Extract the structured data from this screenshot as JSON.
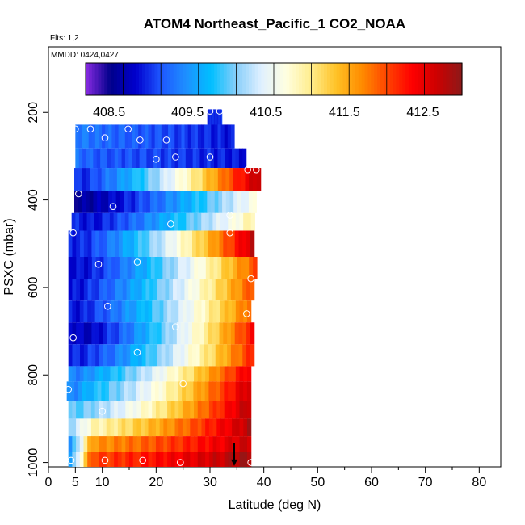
{
  "title": "ATOM4 Northeast_Pacific_1 CO2_NOAA",
  "flights_label": "Flts: 1,2",
  "dates_label": "MMDD: 0424,0427",
  "chart_data": {
    "type": "heatmap",
    "xlabel": "Latitude (deg N)",
    "ylabel": "PSXC (mbar)",
    "xlim": [
      0,
      84
    ],
    "ylim": [
      1010,
      50
    ],
    "y_reversed": true,
    "x_ticks": [
      0,
      5,
      10,
      20,
      30,
      40,
      50,
      60,
      70,
      80
    ],
    "y_ticks": [
      200,
      400,
      600,
      800,
      1000
    ],
    "colorbar": {
      "range": [
        408.2,
        413.0
      ],
      "tick_values": [
        408.5,
        409.5,
        410.5,
        411.5,
        412.5
      ],
      "tick_labels": [
        "408.5",
        "409.5",
        "410.5",
        "411.5",
        "412.5"
      ],
      "colors": [
        "#8a2be2",
        "#00008b",
        "#0000cd",
        "#1e56ff",
        "#1e90ff",
        "#00bfff",
        "#87cefa",
        "#e0f0ff",
        "#ffffe0",
        "#ffec8b",
        "#ffc125",
        "#ff8c00",
        "#ff4500",
        "#ff0000",
        "#cd0000",
        "#8b1a1a"
      ]
    },
    "bands": [
      {
        "p_top": 193,
        "p_bot": 228,
        "x0": 29.5,
        "x1": 32.2,
        "v0": 409.0,
        "v1": 409.0,
        "start": 409.0
      },
      {
        "p_top": 228,
        "p_bot": 282,
        "x0": 5.0,
        "x1": 34.5,
        "v0": 409.3,
        "v1": 408.9,
        "start": 409.4
      },
      {
        "p_top": 282,
        "p_bot": 327,
        "x0": 5.0,
        "x1": 36.7,
        "v0": 409.2,
        "v1": 408.9,
        "start": 409.3
      },
      {
        "p_top": 327,
        "p_bot": 380,
        "x0": 4.8,
        "x1": 39.4,
        "v0": 409.0,
        "v1": 412.8,
        "start": 409.0
      },
      {
        "p_top": 380,
        "p_bot": 430,
        "x0": 4.8,
        "x1": 38.6,
        "v0": 408.6,
        "v1": 410.7,
        "start": 408.6
      },
      {
        "p_top": 430,
        "p_bot": 470,
        "x0": 4.3,
        "x1": 38.3,
        "v0": 408.8,
        "v1": 411.0,
        "start": 409.0
      },
      {
        "p_top": 470,
        "p_bot": 530,
        "x0": 3.7,
        "x1": 38.2,
        "v0": 408.9,
        "v1": 412.7,
        "start": 409.0
      },
      {
        "p_top": 530,
        "p_bot": 580,
        "x0": 3.7,
        "x1": 38.7,
        "v0": 408.8,
        "v1": 412.0,
        "start": 408.9
      },
      {
        "p_top": 580,
        "p_bot": 630,
        "x0": 3.7,
        "x1": 38.2,
        "v0": 408.9,
        "v1": 412.0,
        "start": 408.9
      },
      {
        "p_top": 630,
        "p_bot": 680,
        "x0": 3.7,
        "x1": 37.6,
        "v0": 408.9,
        "v1": 411.9,
        "start": 408.9
      },
      {
        "p_top": 680,
        "p_bot": 730,
        "x0": 3.7,
        "x1": 38.2,
        "v0": 408.6,
        "v1": 412.3,
        "start": 408.9
      },
      {
        "p_top": 730,
        "p_bot": 780,
        "x0": 3.7,
        "x1": 38.2,
        "v0": 408.9,
        "v1": 412.2,
        "start": 409.0
      },
      {
        "p_top": 780,
        "p_bot": 815,
        "x0": 3.7,
        "x1": 37.6,
        "v0": 409.4,
        "v1": 412.5,
        "start": 409.4
      },
      {
        "p_top": 815,
        "p_bot": 860,
        "x0": 3.4,
        "x1": 37.6,
        "v0": 409.6,
        "v1": 412.7,
        "start": 409.4
      },
      {
        "p_top": 860,
        "p_bot": 900,
        "x0": 3.7,
        "x1": 37.6,
        "v0": 410.0,
        "v1": 412.8,
        "start": 410.0
      },
      {
        "p_top": 900,
        "p_bot": 940,
        "x0": 3.7,
        "x1": 37.6,
        "v0": 410.8,
        "v1": 412.8,
        "start": 410.2
      },
      {
        "p_top": 940,
        "p_bot": 975,
        "x0": 3.7,
        "x1": 37.6,
        "v0": 411.6,
        "v1": 412.7,
        "start": 409.5
      },
      {
        "p_top": 975,
        "p_bot": 1010,
        "x0": 3.7,
        "x1": 37.6,
        "v0": 412.0,
        "v1": 412.9,
        "start": 409.6
      }
    ],
    "points": [
      {
        "lat": 30.0,
        "p": 197
      },
      {
        "lat": 31.8,
        "p": 197
      },
      {
        "lat": 5.0,
        "p": 238
      },
      {
        "lat": 7.8,
        "p": 238
      },
      {
        "lat": 14.8,
        "p": 238
      },
      {
        "lat": 10.5,
        "p": 258
      },
      {
        "lat": 17.0,
        "p": 263
      },
      {
        "lat": 21.9,
        "p": 263
      },
      {
        "lat": 20.0,
        "p": 307
      },
      {
        "lat": 23.6,
        "p": 302
      },
      {
        "lat": 30.0,
        "p": 302
      },
      {
        "lat": 37.0,
        "p": 331
      },
      {
        "lat": 38.6,
        "p": 331
      },
      {
        "lat": 5.6,
        "p": 386
      },
      {
        "lat": 12.0,
        "p": 415
      },
      {
        "lat": 33.7,
        "p": 435
      },
      {
        "lat": 22.7,
        "p": 455
      },
      {
        "lat": 4.6,
        "p": 475
      },
      {
        "lat": 33.7,
        "p": 475
      },
      {
        "lat": 9.3,
        "p": 547
      },
      {
        "lat": 16.5,
        "p": 542
      },
      {
        "lat": 37.6,
        "p": 580
      },
      {
        "lat": 11.0,
        "p": 643
      },
      {
        "lat": 36.8,
        "p": 660
      },
      {
        "lat": 23.6,
        "p": 690
      },
      {
        "lat": 4.6,
        "p": 715
      },
      {
        "lat": 16.5,
        "p": 748
      },
      {
        "lat": 25.0,
        "p": 820
      },
      {
        "lat": 3.7,
        "p": 833
      },
      {
        "lat": 10.0,
        "p": 883
      },
      {
        "lat": 4.2,
        "p": 995
      },
      {
        "lat": 10.5,
        "p": 995
      },
      {
        "lat": 17.5,
        "p": 995
      },
      {
        "lat": 24.5,
        "p": 1000
      },
      {
        "lat": 37.6,
        "p": 1000
      }
    ],
    "arrow": {
      "lat": 34.5,
      "p_from": 955,
      "p_to": 1008
    }
  }
}
